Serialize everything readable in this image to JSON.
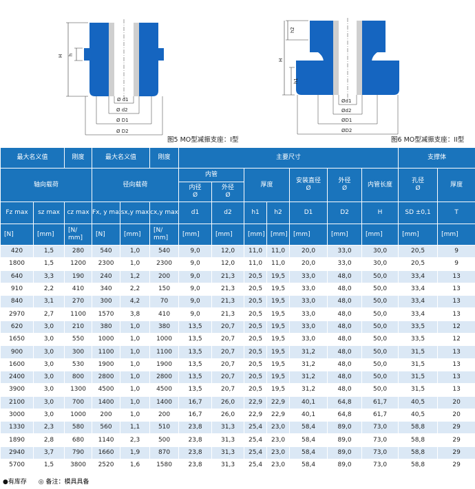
{
  "figures": {
    "fig1": {
      "caption": "图5 MO型减振支座：I型",
      "labels": {
        "H": "H",
        "h": "h",
        "d1": "Ø d1",
        "d2": "Ø d2",
        "D1": "Ø D1",
        "D2": "Ø D2"
      }
    },
    "fig2": {
      "caption": "图6  MO型减振支座：II型",
      "labels": {
        "h2": "h2",
        "H": "H",
        "h1": "h1",
        "d1": "Ød1",
        "d2": "Ød2",
        "D1": "ØD1",
        "D2": "ØD2"
      }
    },
    "colors": {
      "rubber": "#1565c0",
      "tube": "#cfcfcf",
      "header": "#1a74bc",
      "row_alt": "#dbe8f5"
    }
  },
  "table": {
    "header1": [
      "最大名义值",
      "刚度",
      "最大名义值",
      "刚度",
      "主要尺寸",
      "支撑体"
    ],
    "header2": {
      "axial_load": "轴向载荷",
      "radial_load": "径向载荷",
      "inner_tube": "内管",
      "inner_diameter": "内径\nØ",
      "outer_diameter": "外径\nØ",
      "thickness": "厚度",
      "mount_diameter": "安装直径\nØ",
      "outer_dia2": "外径\nØ",
      "tube_length": "内管长度",
      "hole_dia": "孔径\nØ",
      "thickness2": "厚度"
    },
    "symbols": [
      "Fz max",
      "sz max",
      "cz max",
      "Fx, y max",
      "sx,y max",
      "cx,y max",
      "d1",
      "d2",
      "h1",
      "h2",
      "D1",
      "D2",
      "H",
      "SD ±0,1",
      "T"
    ],
    "units": [
      "[N]",
      "[mm]",
      "[N/ mm]",
      "[N]",
      "[mm]",
      "[N/ mm]",
      "[mm]",
      "[mm]",
      "[mm]",
      "[mm]",
      "[mm]",
      "[mm]",
      "[mm]",
      "[mm]",
      "[mm]"
    ],
    "rows": [
      [
        "420",
        "1,5",
        "280",
        "540",
        "1,0",
        "540",
        "9,0",
        "12,0",
        "11,0",
        "11,0",
        "20,0",
        "33,0",
        "30,0",
        "20,5",
        "9"
      ],
      [
        "1800",
        "1,5",
        "1200",
        "2300",
        "1,0",
        "2300",
        "9,0",
        "12,0",
        "11,0",
        "11,0",
        "20,0",
        "33,0",
        "30,0",
        "20,5",
        "9"
      ],
      [
        "640",
        "3,3",
        "190",
        "240",
        "1,2",
        "200",
        "9,0",
        "21,3",
        "20,5",
        "19,5",
        "33,0",
        "48,0",
        "50,0",
        "33,4",
        "13"
      ],
      [
        "910",
        "2,2",
        "410",
        "340",
        "2,2",
        "150",
        "9,0",
        "21,3",
        "20,5",
        "19,5",
        "33,0",
        "48,0",
        "50,0",
        "33,4",
        "13"
      ],
      [
        "840",
        "3,1",
        "270",
        "300",
        "4,2",
        "70",
        "9,0",
        "21,3",
        "20,5",
        "19,5",
        "33,0",
        "48,0",
        "50,0",
        "33,4",
        "13"
      ],
      [
        "2970",
        "2,7",
        "1100",
        "1570",
        "3,8",
        "410",
        "9,0",
        "21,3",
        "20,5",
        "19,5",
        "33,0",
        "48,0",
        "50,0",
        "33,4",
        "13"
      ],
      [
        "620",
        "3,0",
        "210",
        "380",
        "1,0",
        "380",
        "13,5",
        "20,7",
        "20,5",
        "19,5",
        "33,0",
        "48,0",
        "50,0",
        "33,5",
        "12"
      ],
      [
        "1650",
        "3,0",
        "550",
        "1000",
        "1,0",
        "1000",
        "13,5",
        "20,7",
        "20,5",
        "19,5",
        "33,0",
        "48,0",
        "50,0",
        "33,5",
        "12"
      ],
      [
        "900",
        "3,0",
        "300",
        "1100",
        "1,0",
        "1100",
        "13,5",
        "20,7",
        "20,5",
        "19,5",
        "31,2",
        "48,0",
        "50,0",
        "31,5",
        "13"
      ],
      [
        "1600",
        "3,0",
        "530",
        "1900",
        "1,0",
        "1900",
        "13,5",
        "20,7",
        "20,5",
        "19,5",
        "31,2",
        "48,0",
        "50,0",
        "31,5",
        "13"
      ],
      [
        "2400",
        "3,0",
        "800",
        "2800",
        "1,0",
        "2800",
        "13,5",
        "20,7",
        "20,5",
        "19,5",
        "31,2",
        "48,0",
        "50,0",
        "31,5",
        "13"
      ],
      [
        "3900",
        "3,0",
        "1300",
        "4500",
        "1,0",
        "4500",
        "13,5",
        "20,7",
        "20,5",
        "19,5",
        "31,2",
        "48,0",
        "50,0",
        "31,5",
        "13"
      ],
      [
        "2100",
        "3,0",
        "700",
        "1400",
        "1,0",
        "1400",
        "16,7",
        "26,0",
        "22,9",
        "22,9",
        "40,1",
        "64,8",
        "61,7",
        "40,5",
        "20"
      ],
      [
        "3000",
        "3,0",
        "1000",
        "200",
        "1,0",
        "200",
        "16,7",
        "26,0",
        "22,9",
        "22,9",
        "40,1",
        "64,8",
        "61,7",
        "40,5",
        "20"
      ],
      [
        "1330",
        "2,3",
        "580",
        "560",
        "1,1",
        "510",
        "23,8",
        "31,3",
        "25,4",
        "23,0",
        "58,4",
        "89,0",
        "73,0",
        "58,8",
        "29"
      ],
      [
        "1890",
        "2,8",
        "680",
        "1140",
        "2,3",
        "500",
        "23,8",
        "31,3",
        "25,4",
        "23,0",
        "58,4",
        "89,0",
        "73,0",
        "58,8",
        "29"
      ],
      [
        "2940",
        "3,7",
        "790",
        "1660",
        "1,9",
        "870",
        "23,8",
        "31,3",
        "25,4",
        "23,0",
        "58,4",
        "89,0",
        "73,0",
        "58,8",
        "29"
      ],
      [
        "5700",
        "1,5",
        "3800",
        "2520",
        "1,6",
        "1580",
        "23,8",
        "31,3",
        "25,4",
        "23,0",
        "58,4",
        "89,0",
        "73,0",
        "58,8",
        "29"
      ]
    ]
  },
  "footer": {
    "stock": "●有库存",
    "note": "◎ 备注：模具具备"
  }
}
